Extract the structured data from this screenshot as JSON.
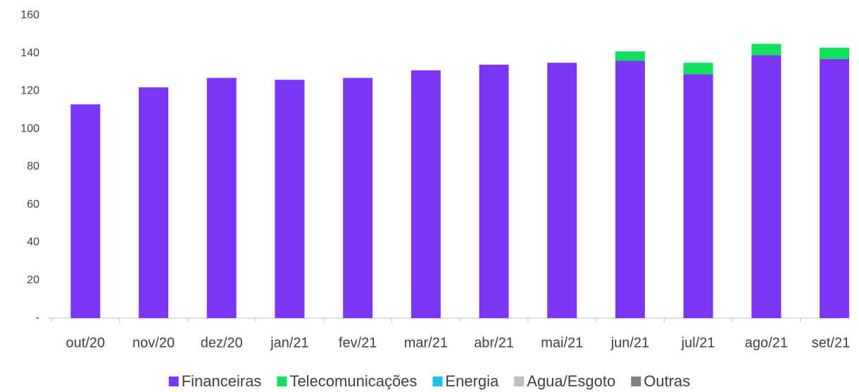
{
  "chart_data": {
    "type": "bar",
    "stacked": true,
    "categories": [
      "out/20",
      "nov/20",
      "dez/20",
      "jan/21",
      "fev/21",
      "mar/21",
      "abr/21",
      "mai/21",
      "jun/21",
      "jul/21",
      "ago/21",
      "set/21"
    ],
    "series": [
      {
        "name": "Financeiras",
        "color": "#7b35f7",
        "values": [
          113,
          122,
          127,
          126,
          127,
          131,
          134,
          135,
          136,
          129,
          139,
          137
        ]
      },
      {
        "name": "Telecomunicações",
        "color": "#11e05c",
        "values": [
          0,
          0,
          0,
          0,
          0,
          0,
          0,
          0,
          5,
          6,
          6,
          6
        ]
      },
      {
        "name": "Energia",
        "color": "#17c3e6",
        "values": [
          0,
          0,
          0,
          0,
          0,
          0,
          0,
          0,
          0,
          0,
          0,
          0
        ]
      },
      {
        "name": "Agua/Esgoto",
        "color": "#bfbfbf",
        "values": [
          0,
          0,
          0,
          0,
          0,
          0,
          0,
          0,
          0,
          0,
          0,
          0
        ]
      },
      {
        "name": "Outras",
        "color": "#808080",
        "values": [
          0,
          0,
          0,
          0,
          0,
          0,
          0,
          0,
          0,
          0,
          0,
          0
        ]
      }
    ],
    "ylim": [
      0,
      160
    ],
    "yticks": [
      {
        "value": 0,
        "label": "-"
      },
      20,
      40,
      60,
      80,
      100,
      120,
      140,
      160
    ],
    "grid": false,
    "legend": "bottom"
  }
}
